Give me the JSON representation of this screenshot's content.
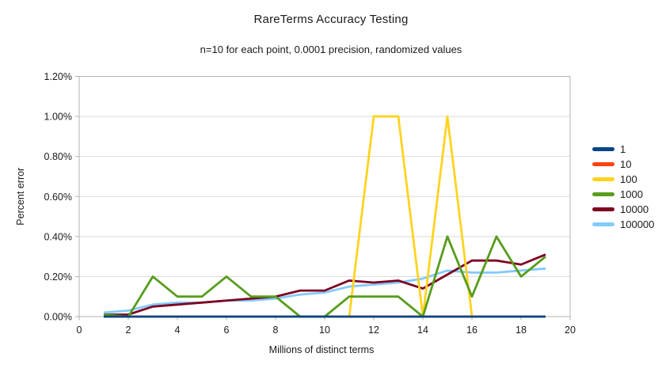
{
  "chart_data": {
    "type": "line",
    "title": "RareTerms Accuracy Testing",
    "subtitle": "n=10 for each point, 0.0001 precision, randomized values",
    "xlabel": "Millions of distinct terms",
    "ylabel": "Percent error",
    "xlim": [
      0,
      20
    ],
    "ylim_percent": [
      0,
      1.2
    ],
    "xticks": [
      0,
      2,
      4,
      6,
      8,
      10,
      12,
      14,
      16,
      18,
      20
    ],
    "yticks": [
      {
        "value": 0.0,
        "label": "0.00%"
      },
      {
        "value": 0.2,
        "label": "0.20%"
      },
      {
        "value": 0.4,
        "label": "0.40%"
      },
      {
        "value": 0.6,
        "label": "0.60%"
      },
      {
        "value": 0.8,
        "label": "0.80%"
      },
      {
        "value": 1.0,
        "label": "1.00%"
      },
      {
        "value": 1.2,
        "label": "1.20%"
      }
    ],
    "grid": "horizontal",
    "legend_position": "right",
    "x": [
      1,
      2,
      3,
      4,
      5,
      6,
      7,
      8,
      9,
      10,
      11,
      12,
      13,
      14,
      15,
      16,
      17,
      18,
      19
    ],
    "series": [
      {
        "name": "1",
        "color": "#004586",
        "values": [
          0,
          0,
          0,
          0,
          0,
          0,
          0,
          0,
          0,
          0,
          0,
          0,
          0,
          0,
          0,
          0,
          0,
          0,
          0
        ]
      },
      {
        "name": "10",
        "color": "#ff420e",
        "values": [
          0,
          0,
          0,
          0,
          0,
          0,
          0,
          0,
          0,
          0,
          0,
          0,
          0,
          0,
          0,
          0,
          0,
          0,
          0
        ]
      },
      {
        "name": "100",
        "color": "#ffd320",
        "values": [
          0,
          0,
          0,
          0,
          0,
          0,
          0,
          0,
          0,
          0,
          0,
          1.0,
          1.0,
          0,
          1.0,
          0,
          0,
          0,
          0
        ]
      },
      {
        "name": "1000",
        "color": "#579d1c",
        "values": [
          0.01,
          0,
          0.2,
          0.1,
          0.1,
          0.2,
          0.1,
          0.1,
          0,
          0,
          0.1,
          0.1,
          0.1,
          0,
          0.4,
          0.1,
          0.4,
          0.2,
          0.3
        ]
      },
      {
        "name": "10000",
        "color": "#7e0021",
        "values": [
          0.01,
          0.01,
          0.05,
          0.06,
          0.07,
          0.08,
          0.09,
          0.1,
          0.13,
          0.13,
          0.18,
          0.17,
          0.18,
          0.14,
          0.21,
          0.28,
          0.28,
          0.26,
          0.31
        ]
      },
      {
        "name": "100000",
        "color": "#83caff",
        "values": [
          0.02,
          0.03,
          0.06,
          0.07,
          0.07,
          0.08,
          0.08,
          0.09,
          0.11,
          0.12,
          0.15,
          0.16,
          0.17,
          0.19,
          0.23,
          0.22,
          0.22,
          0.23,
          0.24
        ]
      }
    ],
    "draw_order": [
      "10",
      "100000",
      "10000",
      "100",
      "1000",
      "1"
    ],
    "colors": {
      "gridline": "#d9d9d9",
      "axis": "#b3b3b3",
      "text": "#1a1a1a"
    }
  }
}
